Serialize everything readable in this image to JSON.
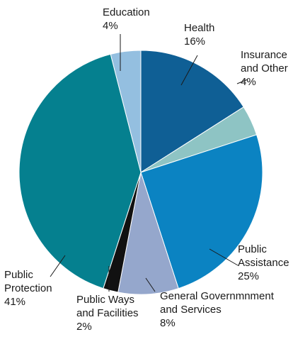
{
  "chart_data": {
    "type": "pie",
    "title": "",
    "start_angle_deg": 0,
    "direction": "clockwise",
    "slices": [
      {
        "label": "Health",
        "value": 16,
        "pct_text": "16%",
        "color": "#0f5f95"
      },
      {
        "label": "Insurance and Other",
        "value": 4,
        "pct_text": "4%",
        "color": "#8ec4c4"
      },
      {
        "label": "Public Assistance",
        "value": 25,
        "pct_text": "25%",
        "color": "#0b83c2"
      },
      {
        "label": "General Governmnment and Services",
        "value": 8,
        "pct_text": "8%",
        "color": "#95a7cc"
      },
      {
        "label": "Public Ways and Facilities",
        "value": 2,
        "pct_text": "2%",
        "color": "#111111"
      },
      {
        "label": "Public Protection",
        "value": 41,
        "pct_text": "41%",
        "color": "#05808f"
      },
      {
        "label": "Education",
        "value": 4,
        "pct_text": "4%",
        "color": "#94bfe0"
      }
    ]
  },
  "labels": {
    "health": {
      "line1": "Health",
      "line2": "16%"
    },
    "insurance": {
      "line1": "Insurance",
      "line2": "and Other",
      "line3": "4%"
    },
    "public_assistance": {
      "line1": "Public",
      "line2": "Assistance",
      "line3": "25%"
    },
    "general_government": {
      "line1": "General Governmnment",
      "line2": "and Services",
      "line3": "8%"
    },
    "public_ways": {
      "line1": "Public Ways",
      "line2": "and Facilities",
      "line3": "2%"
    },
    "public_protection": {
      "line1": "Public",
      "line2": "Protection",
      "line3": "41%"
    },
    "education": {
      "line1": "Education",
      "line2": "4%"
    }
  }
}
